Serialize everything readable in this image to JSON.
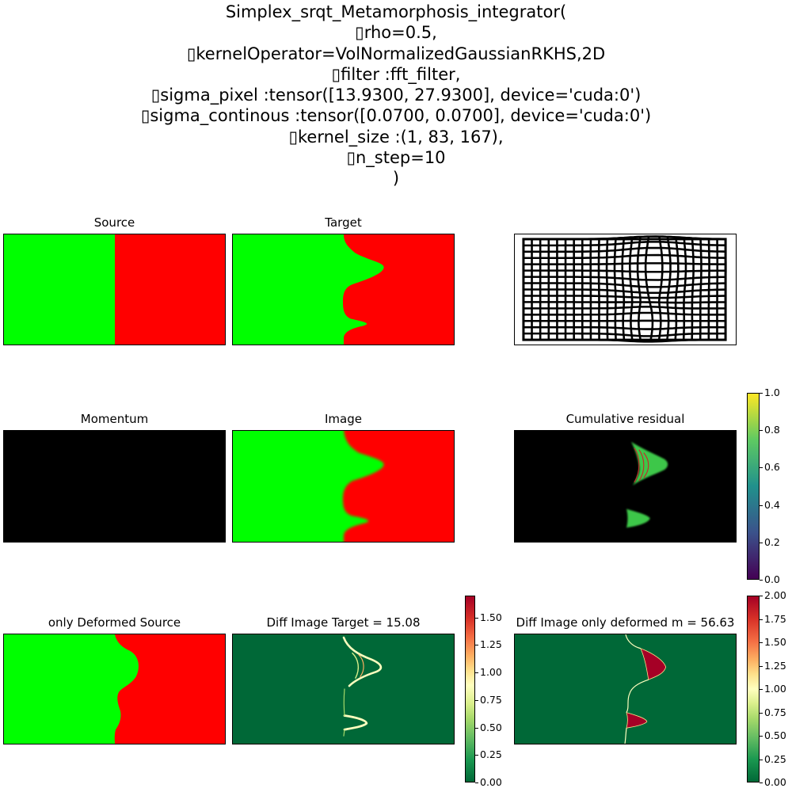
{
  "suptitle_lines": [
    "Simplex_srqt_Metamorphosis_integrator(",
    "▯rho=0.5,",
    "▯kernelOperator=VolNormalizedGaussianRKHS,2D",
    "▯filter :fft_filter,",
    "▯sigma_pixel :tensor([13.9300, 27.9300], device='cuda:0')",
    "▯sigma_continous :tensor([0.0700, 0.0700], device='cuda:0')",
    "▯kernel_size :(1, 83, 167),",
    "▯n_step=10",
    ")"
  ],
  "panels": {
    "source": "Source",
    "target": "Target",
    "momentum": "Momentum",
    "image": "Image",
    "cumulative_residual": "Cumulative residual",
    "only_deformed_source": "only Deformed Source",
    "diff_target": "Diff Image Target = 15.08",
    "diff_deformed": "Diff Image only deformed m = 56.63"
  },
  "colors": {
    "green": "#00ff00",
    "red": "#ff0000",
    "black": "#000000",
    "diff_background": "#006837",
    "diff_peak": "#a50026"
  },
  "chart_data": [
    {
      "type": "heatmap",
      "title": "Source",
      "description_values": {
        "left_region": "green",
        "right_region": "red"
      }
    },
    {
      "type": "heatmap",
      "title": "Target"
    },
    {
      "type": "heatmap",
      "title": "Momentum"
    },
    {
      "type": "heatmap",
      "title": "Image"
    },
    {
      "type": "heatmap",
      "title": "Cumulative residual",
      "colorbar": {
        "colormap": "viridis",
        "range": [
          0,
          1.0
        ],
        "ticks": [
          "0.0",
          "0.2",
          "0.4",
          "0.6",
          "0.8",
          "1.0"
        ]
      }
    },
    {
      "type": "heatmap",
      "title": "only Deformed Source"
    },
    {
      "type": "heatmap",
      "title": "Diff Image Target = 15.08",
      "colorbar": {
        "colormap": "RdYlGn_r",
        "range": [
          0,
          1.7
        ],
        "ticks": [
          "0.00",
          "0.25",
          "0.50",
          "0.75",
          "1.00",
          "1.25",
          "1.50"
        ]
      }
    },
    {
      "type": "heatmap",
      "title": "Diff Image only deformed m = 56.63",
      "colorbar": {
        "colormap": "RdYlGn_r",
        "range": [
          0,
          2.0
        ],
        "ticks": [
          "0.00",
          "0.25",
          "0.50",
          "0.75",
          "1.00",
          "1.25",
          "1.50",
          "1.75",
          "2.00"
        ]
      }
    }
  ]
}
